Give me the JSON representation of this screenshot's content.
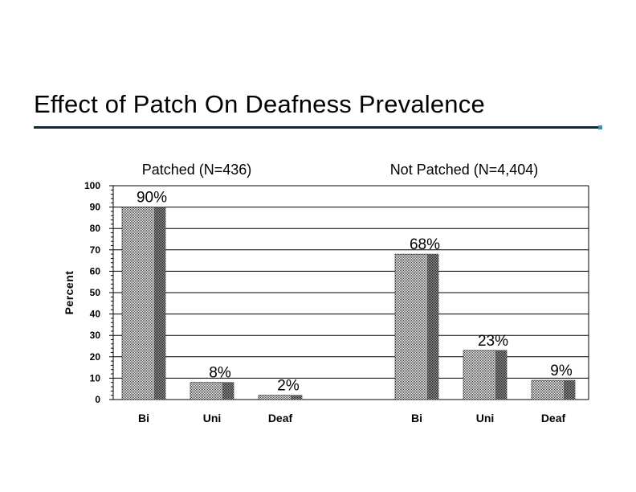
{
  "slide": {
    "title": "Effect of Patch On Deafness Prevalence"
  },
  "chart_data": {
    "type": "bar",
    "ylabel": "Percent",
    "ylim": [
      0,
      100
    ],
    "yticks": [
      "0",
      "10",
      "20",
      "30",
      "40",
      "50",
      "60",
      "70",
      "80",
      "90",
      "100"
    ],
    "grid": true,
    "groups": [
      {
        "title": "Patched (N=436)",
        "categories": [
          "Bi",
          "Uni",
          "Deaf"
        ],
        "values": [
          90,
          8,
          2
        ],
        "labels": [
          "90%",
          "8%",
          "2%"
        ]
      },
      {
        "title": "Not Patched (N=4,404)",
        "categories": [
          "Bi",
          "Uni",
          "Deaf"
        ],
        "values": [
          68,
          23,
          9
        ],
        "labels": [
          "68%",
          "23%",
          "9%"
        ]
      }
    ],
    "colors": {
      "bar": "#555555",
      "bar_light": "#999999",
      "grid": "#000000"
    }
  }
}
